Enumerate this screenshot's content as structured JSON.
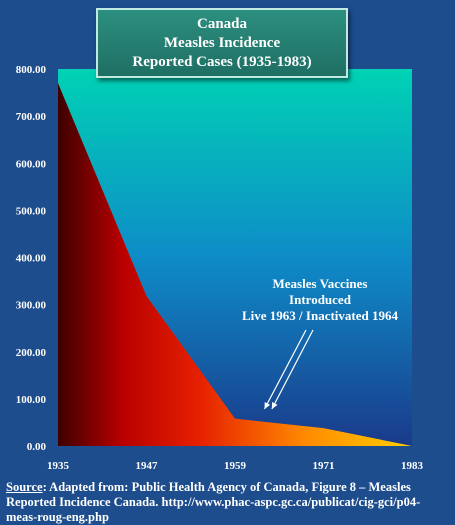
{
  "chart_data": {
    "type": "area",
    "title_lines": [
      "Canada",
      "Measles Incidence",
      "Reported Cases (1935-1983)"
    ],
    "x": [
      1935,
      1947,
      1959,
      1971,
      1983
    ],
    "x_tick_labels": [
      "1935",
      "1947",
      "1959",
      "1971",
      "1983"
    ],
    "values": [
      770,
      318,
      58,
      38,
      0
    ],
    "ylim": [
      0,
      800
    ],
    "y_tick_labels": [
      "0.00",
      "100.00",
      "200.00",
      "300.00",
      "400.00",
      "500.00",
      "600.00",
      "700.00",
      "800.00"
    ],
    "xlabel": "",
    "ylabel": "",
    "grid": false,
    "annotation": {
      "lines": [
        "Measles Vaccines",
        "Introduced",
        "Live 1963 / Inactivated 1964"
      ],
      "arrow_targets_x": [
        1963,
        1964
      ]
    },
    "colors": {
      "background_top": "#00d2b4",
      "background_bottom": "#1a3a8a",
      "area_left": "#3d0000",
      "area_mid": "#e62000",
      "area_right": "#ffd000",
      "title_box": "#2c8f7f",
      "text": "#ffffff"
    }
  },
  "source": {
    "label": "Source",
    "text": ": Adapted from: Public Health Agency of Canada, Figure 8 – Measles Reported Incidence Canada. http://www.phac-aspc.gc.ca/publicat/cig-gci/p04-meas-roug-eng.php"
  }
}
